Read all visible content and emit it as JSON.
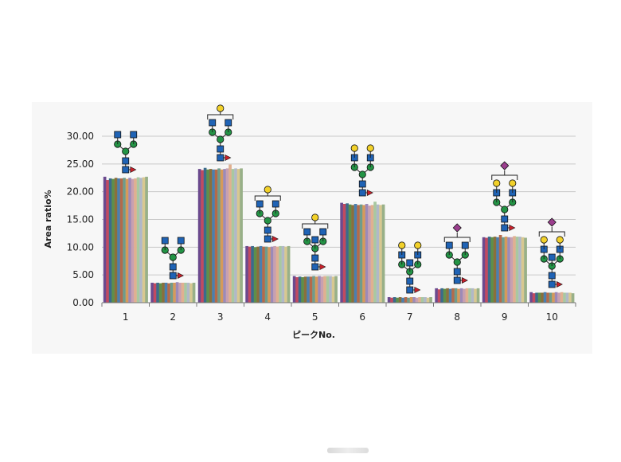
{
  "chart_data": {
    "type": "bar",
    "categories": [
      "1",
      "2",
      "3",
      "4",
      "5",
      "6",
      "7",
      "8",
      "9",
      "10"
    ],
    "xlabel": "ピークNo.",
    "ylabel": "Area ratio%",
    "ylim": [
      0,
      30
    ],
    "yticks": [
      "0.00",
      "5.00",
      "10.00",
      "15.00",
      "20.00",
      "25.00",
      "30.00"
    ],
    "grid": true,
    "legend": "none",
    "series_colors": [
      "#6b4a8e",
      "#c24a60",
      "#3a6b8c",
      "#5e8f4a",
      "#8a6f3c",
      "#4a7fb0",
      "#b46a4a",
      "#6e9c8c",
      "#d69a5a",
      "#9c8ab8",
      "#c8a0b0",
      "#e0b090",
      "#a8c8a0",
      "#b0b8c8",
      "#d8c890",
      "#98b088"
    ],
    "values_per_series": [
      [
        22.7,
        3.6,
        24.1,
        10.2,
        4.8,
        18.0,
        1.0,
        2.6,
        11.8,
        1.9
      ],
      [
        22.1,
        3.5,
        23.9,
        10.1,
        4.6,
        17.8,
        0.9,
        2.4,
        11.7,
        1.7
      ],
      [
        22.4,
        3.6,
        24.3,
        10.2,
        4.7,
        17.9,
        1.0,
        2.6,
        11.9,
        1.8
      ],
      [
        22.3,
        3.5,
        24.0,
        10.0,
        4.6,
        17.7,
        0.9,
        2.5,
        11.8,
        1.8
      ],
      [
        22.5,
        3.6,
        24.1,
        10.1,
        4.7,
        17.6,
        1.0,
        2.6,
        11.9,
        1.8
      ],
      [
        22.4,
        3.6,
        24.0,
        10.2,
        4.7,
        17.8,
        0.9,
        2.5,
        11.8,
        1.9
      ],
      [
        22.4,
        3.5,
        24.0,
        10.1,
        4.7,
        17.6,
        1.0,
        2.6,
        12.2,
        1.8
      ],
      [
        22.5,
        3.6,
        24.2,
        10.1,
        4.8,
        17.7,
        0.9,
        2.6,
        11.8,
        1.8
      ],
      [
        22.3,
        3.6,
        24.0,
        10.0,
        4.7,
        17.6,
        1.0,
        2.5,
        11.9,
        1.8
      ],
      [
        22.5,
        3.7,
        24.1,
        10.1,
        4.8,
        17.8,
        1.0,
        2.6,
        11.8,
        1.9
      ],
      [
        22.3,
        3.6,
        24.2,
        10.2,
        4.7,
        17.5,
        0.9,
        2.5,
        11.8,
        1.8
      ],
      [
        22.4,
        3.6,
        24.9,
        10.1,
        4.8,
        17.6,
        1.0,
        2.6,
        12.0,
        1.9
      ],
      [
        22.6,
        3.6,
        24.1,
        10.2,
        4.8,
        18.2,
        1.0,
        2.6,
        11.9,
        1.8
      ],
      [
        22.5,
        3.6,
        24.2,
        10.2,
        4.8,
        17.7,
        1.0,
        2.6,
        11.9,
        1.8
      ],
      [
        22.6,
        3.5,
        24.1,
        10.1,
        4.7,
        17.6,
        0.9,
        2.5,
        11.8,
        1.8
      ],
      [
        22.7,
        3.6,
        24.2,
        10.2,
        4.8,
        17.7,
        1.0,
        2.6,
        11.7,
        1.7
      ]
    ],
    "glycan_icons": [
      "glycan-1",
      "glycan-2",
      "glycan-3",
      "glycan-4",
      "glycan-5",
      "glycan-6",
      "glycan-7",
      "glycan-8",
      "glycan-9",
      "glycan-10"
    ]
  }
}
